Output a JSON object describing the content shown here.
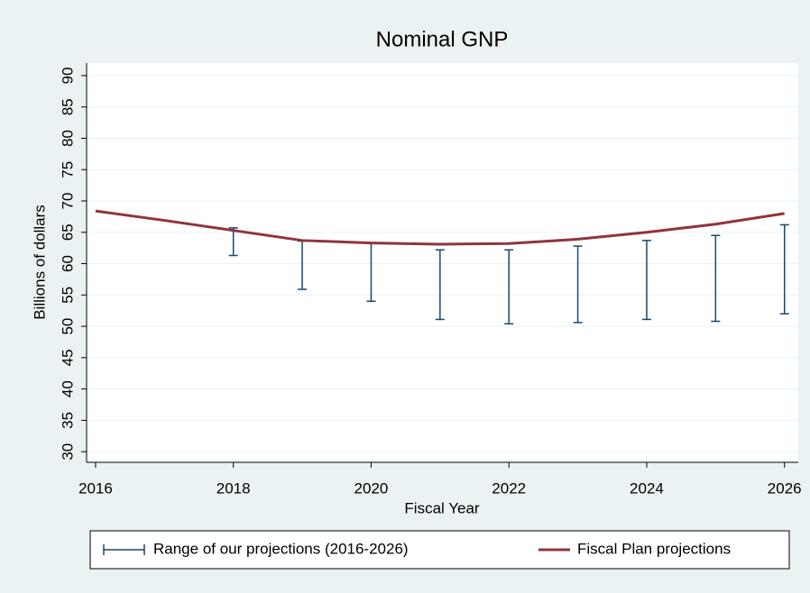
{
  "chart_data": {
    "type": "line",
    "title": "Nominal GNP",
    "xlabel": "Fiscal Year",
    "ylabel": "Billions of dollars",
    "xlim": [
      2015.87,
      2026.2
    ],
    "xticks": [
      2016,
      2018,
      2020,
      2022,
      2024,
      2026
    ],
    "ylim": [
      28.3,
      92
    ],
    "yticks": [
      30,
      35,
      40,
      45,
      50,
      55,
      60,
      65,
      70,
      75,
      80,
      85,
      90
    ],
    "grid": true,
    "legend": "bottom",
    "series": [
      {
        "name": "Range of our projections (2016-2026)",
        "type": "rangebar",
        "color": "#1a476f",
        "x": [
          2018,
          2019,
          2020,
          2021,
          2022,
          2023,
          2024,
          2025,
          2026
        ],
        "low": [
          61.3,
          55.9,
          54.0,
          51.1,
          50.4,
          50.6,
          51.1,
          50.8,
          52.0
        ],
        "high": [
          65.7,
          63.6,
          63.2,
          62.2,
          62.2,
          62.8,
          63.7,
          64.5,
          66.2
        ]
      },
      {
        "name": "Fiscal Plan projections",
        "type": "line",
        "color": "#90353b",
        "x": [
          2016,
          2017,
          2018,
          2019,
          2020,
          2021,
          2022,
          2023,
          2024,
          2025,
          2026
        ],
        "values": [
          68.4,
          66.9,
          65.3,
          63.7,
          63.3,
          63.1,
          63.2,
          63.9,
          65.0,
          66.3,
          68.0
        ]
      }
    ]
  }
}
